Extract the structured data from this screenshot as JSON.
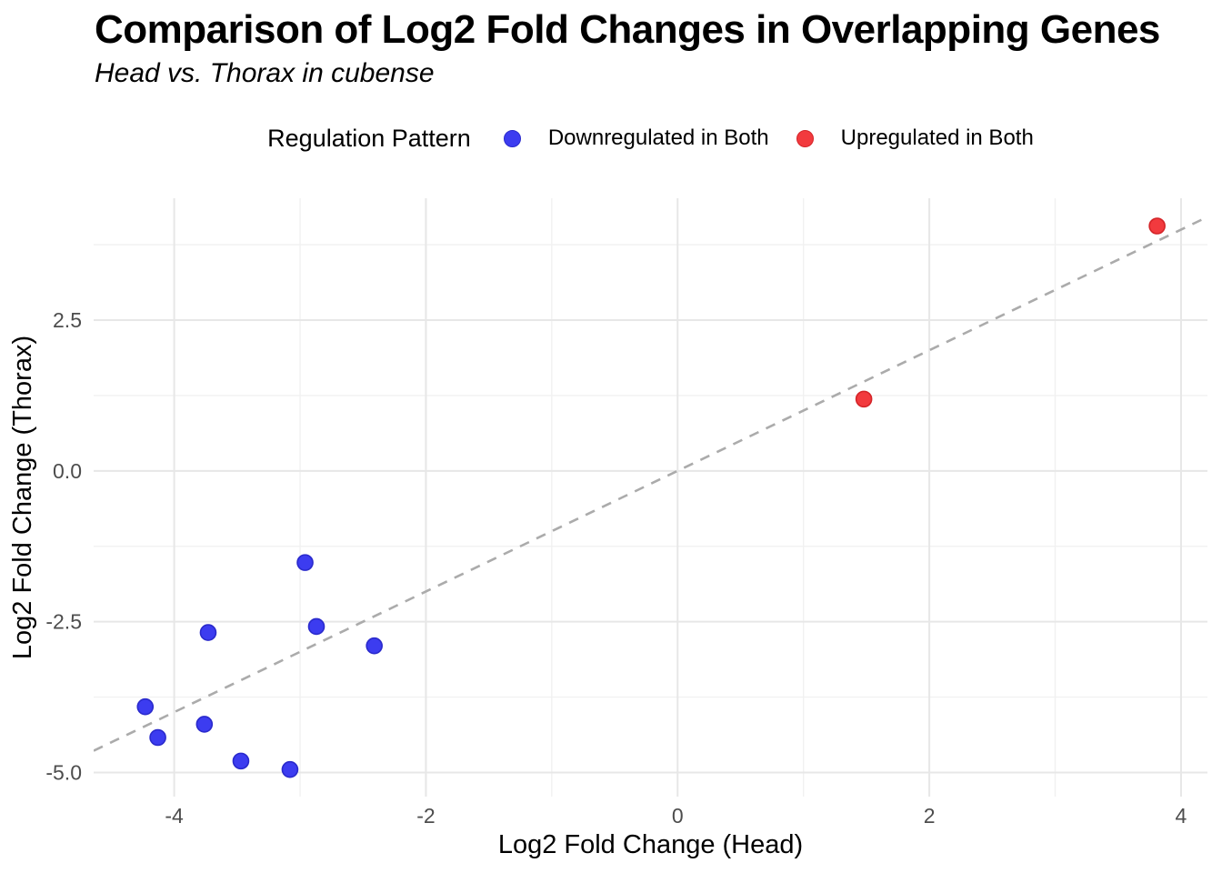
{
  "header": {
    "title": "Comparison of Log2 Fold Changes in Overlapping Genes",
    "subtitle": "Head vs. Thorax in cubense"
  },
  "legend": {
    "title": "Regulation Pattern",
    "items": [
      {
        "label": "Downregulated in Both",
        "color": "#3C3CF0",
        "stroke": "#2A2ACC"
      },
      {
        "label": "Upregulated in Both",
        "color": "#F23A3E",
        "stroke": "#D42428"
      }
    ]
  },
  "colors": {
    "grid_major": "#E7E7E7",
    "grid_minor": "#F1F1F1",
    "reference_line": "#ABABAB",
    "tick_label": "#4D4D4D",
    "axis_title": "#000000"
  },
  "chart_data": {
    "type": "scatter",
    "title": "Comparison of Log2 Fold Changes in Overlapping Genes",
    "subtitle": "Head vs. Thorax in cubense",
    "xlabel": "Log2 Fold Change (Head)",
    "ylabel": "Log2 Fold Change (Thorax)",
    "xlim": [
      -4.64,
      4.21
    ],
    "ylim": [
      -5.4,
      4.52
    ],
    "x_ticks": {
      "values": [
        -4,
        -2,
        0,
        2,
        4
      ],
      "labels": [
        "-4",
        "-2",
        "0",
        "2",
        "4"
      ]
    },
    "y_ticks": {
      "values": [
        2.5,
        0.0,
        -2.5,
        -5.0
      ],
      "labels": [
        "2.5",
        "0.0",
        "-2.5",
        "-5.0"
      ]
    },
    "x_minor_ticks": [
      -3,
      -1,
      1,
      3
    ],
    "y_minor_ticks": [
      3.75,
      1.25,
      -1.25,
      -3.75
    ],
    "grid": true,
    "legend_position": "top",
    "reference_line": {
      "slope": 1,
      "intercept": 0,
      "style": "dashed"
    },
    "series": [
      {
        "name": "Downregulated in Both",
        "color": "#3C3CF0",
        "points": [
          [
            -2.96,
            -1.52
          ],
          [
            -3.73,
            -2.68
          ],
          [
            -2.87,
            -2.58
          ],
          [
            -2.41,
            -2.9
          ],
          [
            -4.23,
            -3.91
          ],
          [
            -4.13,
            -4.42
          ],
          [
            -3.76,
            -4.2
          ],
          [
            -3.47,
            -4.81
          ],
          [
            -3.08,
            -4.95
          ]
        ]
      },
      {
        "name": "Upregulated in Both",
        "color": "#F23A3E",
        "points": [
          [
            1.48,
            1.19
          ],
          [
            3.81,
            4.06
          ]
        ]
      }
    ]
  }
}
